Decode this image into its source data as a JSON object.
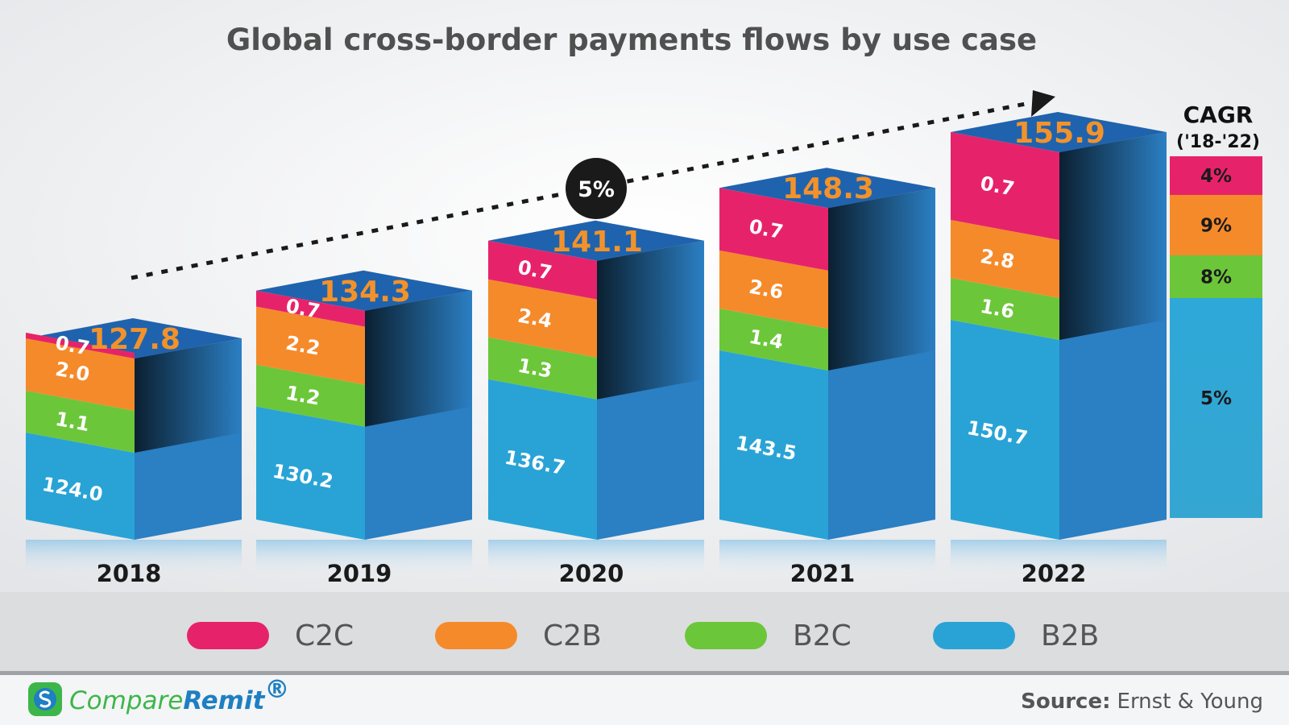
{
  "chart_data": {
    "type": "bar",
    "stacked": true,
    "title": "Global cross-border payments flows by use case",
    "categories": [
      "2018",
      "2019",
      "2020",
      "2021",
      "2022"
    ],
    "totals": [
      127.8,
      134.3,
      141.1,
      148.3,
      155.9
    ],
    "totals_labels": [
      "127.8",
      "134.3",
      "141.1",
      "148.3",
      "155.9"
    ],
    "series": [
      {
        "name": "B2B",
        "color": "#29a3d6",
        "values": [
          124.0,
          130.2,
          136.7,
          143.5,
          150.7
        ],
        "labels": [
          "124.0",
          "130.2",
          "136.7",
          "143.5",
          "150.7"
        ]
      },
      {
        "name": "B2C",
        "color": "#6cc63a",
        "values": [
          1.1,
          1.2,
          1.3,
          1.4,
          1.6
        ],
        "labels": [
          "1.1",
          "1.2",
          "1.3",
          "1.4",
          "1.6"
        ]
      },
      {
        "name": "C2B",
        "color": "#f58a2b",
        "values": [
          2.0,
          2.2,
          2.4,
          2.6,
          2.8
        ],
        "labels": [
          "2.0",
          "2.2",
          "2.4",
          "2.6",
          "2.8"
        ]
      },
      {
        "name": "C2C",
        "color": "#e6236a",
        "values": [
          0.7,
          0.7,
          0.7,
          0.7,
          0.7
        ],
        "labels": [
          "0.7",
          "0.7",
          "0.7",
          "0.7",
          "0.7"
        ]
      }
    ],
    "legend_order": [
      "C2C",
      "C2B",
      "B2C",
      "B2B"
    ],
    "legend_position": "bottom",
    "growth_label": "5%",
    "cagr": {
      "title": "CAGR",
      "subtitle": "('18-'22)",
      "items": [
        {
          "series": "C2C",
          "value": "4%",
          "color": "#e6236a"
        },
        {
          "series": "C2B",
          "value": "9%",
          "color": "#f58a2b"
        },
        {
          "series": "B2C",
          "value": "8%",
          "color": "#6cc63a"
        },
        {
          "series": "B2B",
          "value": "5%",
          "color": "#29a3d6"
        }
      ]
    },
    "grid": false
  },
  "footer": {
    "brand_part1": "Compare",
    "brand_part2": "Remit",
    "brand_mark": "®",
    "source_label": "Source:",
    "source_value": "Ernst & Young"
  },
  "colors": {
    "b2b_side": "#2b7fc3",
    "top_face": "#1f63ae",
    "total_label": "#f3922a"
  }
}
